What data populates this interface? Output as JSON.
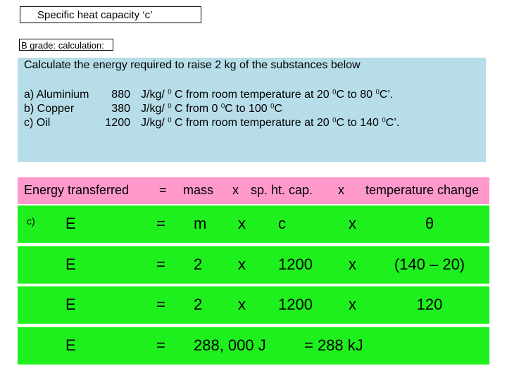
{
  "header": {
    "title": "Specific heat capacity ‘c’",
    "grade": "B grade:  calculation:"
  },
  "question": {
    "prompt": "Calculate the energy required to raise  2 kg of the substances below",
    "items": [
      {
        "label": "a) Aluminium",
        "value": "880",
        "rest": [
          {
            "text": "J/kg/ "
          },
          {
            "sup": "0"
          },
          {
            "text": " C  from room temperature at 20 "
          },
          {
            "sup": "0"
          },
          {
            "text": "C to 80 "
          },
          {
            "sup": "0"
          },
          {
            "text": "C’."
          }
        ]
      },
      {
        "label": "b) Copper",
        "value": "380",
        "rest": [
          {
            "text": "J/kg/ "
          },
          {
            "sup": "0"
          },
          {
            "text": " C  from 0 "
          },
          {
            "sup": "0"
          },
          {
            "text": "C  to 100 "
          },
          {
            "sup": "0"
          },
          {
            "text": "C"
          }
        ]
      },
      {
        "label": "c) Oil",
        "value": "1200",
        "rest": [
          {
            "text": "J/kg/ "
          },
          {
            "sup": "0"
          },
          {
            "text": " C from room temperature at 20 "
          },
          {
            "sup": "0"
          },
          {
            "text": "C to 140 "
          },
          {
            "sup": "0"
          },
          {
            "text": "C’."
          }
        ]
      }
    ]
  },
  "formula": [
    "Energy transferred",
    "=",
    "mass",
    "x",
    "sp. ht. cap.",
    "x",
    "temperature change"
  ],
  "working": {
    "part": "c)",
    "rows": [
      [
        "E",
        "=",
        "m",
        "x",
        "c",
        "x",
        "θ"
      ],
      [
        "E",
        "=",
        "2",
        "x",
        "1200",
        "x",
        "(140 – 20)"
      ],
      [
        "E",
        "=",
        "2",
        "x",
        "1200",
        "x",
        "120"
      ],
      [
        "E",
        "=",
        "288, 000  J",
        "= 288 kJ"
      ]
    ]
  }
}
